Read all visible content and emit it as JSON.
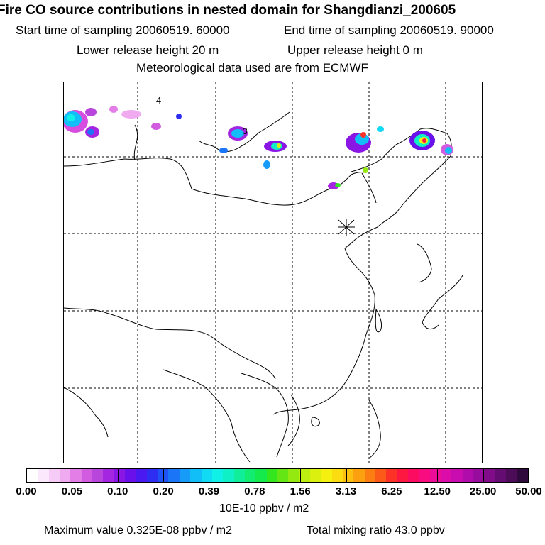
{
  "title": "Fire CO source contributions in nested domain for Shangdianzi_200605",
  "start_time": "Start time of sampling 20060519. 60000",
  "end_time": "End time of sampling 20060519. 90000",
  "lower_height": "Lower release height   20 m",
  "upper_height": "Upper release height    0 m",
  "met_data": "Meteorological data used are from ECMWF",
  "map_labels": {
    "label_4": "4",
    "label_3": "3"
  },
  "receptor_marker": "*",
  "colorbar": {
    "ticks": [
      "0.00",
      "0.05",
      "0.10",
      "0.20",
      "0.39",
      "0.78",
      "1.56",
      "3.13",
      "6.25",
      "12.50",
      "25.00",
      "50.00"
    ],
    "colors": [
      "#ffffff",
      "#fce8fc",
      "#f6ccf6",
      "#f0aaf0",
      "#e27ee6",
      "#d25ce0",
      "#b845dc",
      "#a426e0",
      "#8a16e6",
      "#6a10ea",
      "#4a18f0",
      "#2e2ef2",
      "#1e52f4",
      "#1a76f6",
      "#169cf8",
      "#12bef8",
      "#10daf4",
      "#10f0e6",
      "#10f0c6",
      "#10ee9a",
      "#12ec70",
      "#14ea4c",
      "#34e61e",
      "#64e614",
      "#94ea10",
      "#bcee10",
      "#dcf010",
      "#f6f010",
      "#fadc10",
      "#fcc010",
      "#fca010",
      "#fc7e12",
      "#fc5a18",
      "#fc3228",
      "#fc1840",
      "#fc0c60",
      "#f80c80",
      "#ec0c98",
      "#dc0ca8",
      "#c80cb0",
      "#b00cac",
      "#980c9e",
      "#800c8a",
      "#640c72",
      "#4c0c58",
      "#300a3c"
    ],
    "units": "10E-10 ppbv / m2"
  },
  "maximum_value": "Maximum value  0.325E-08 ppbv / m2",
  "total_mixing_ratio": "Total mixing ratio       43.0 ppbv"
}
